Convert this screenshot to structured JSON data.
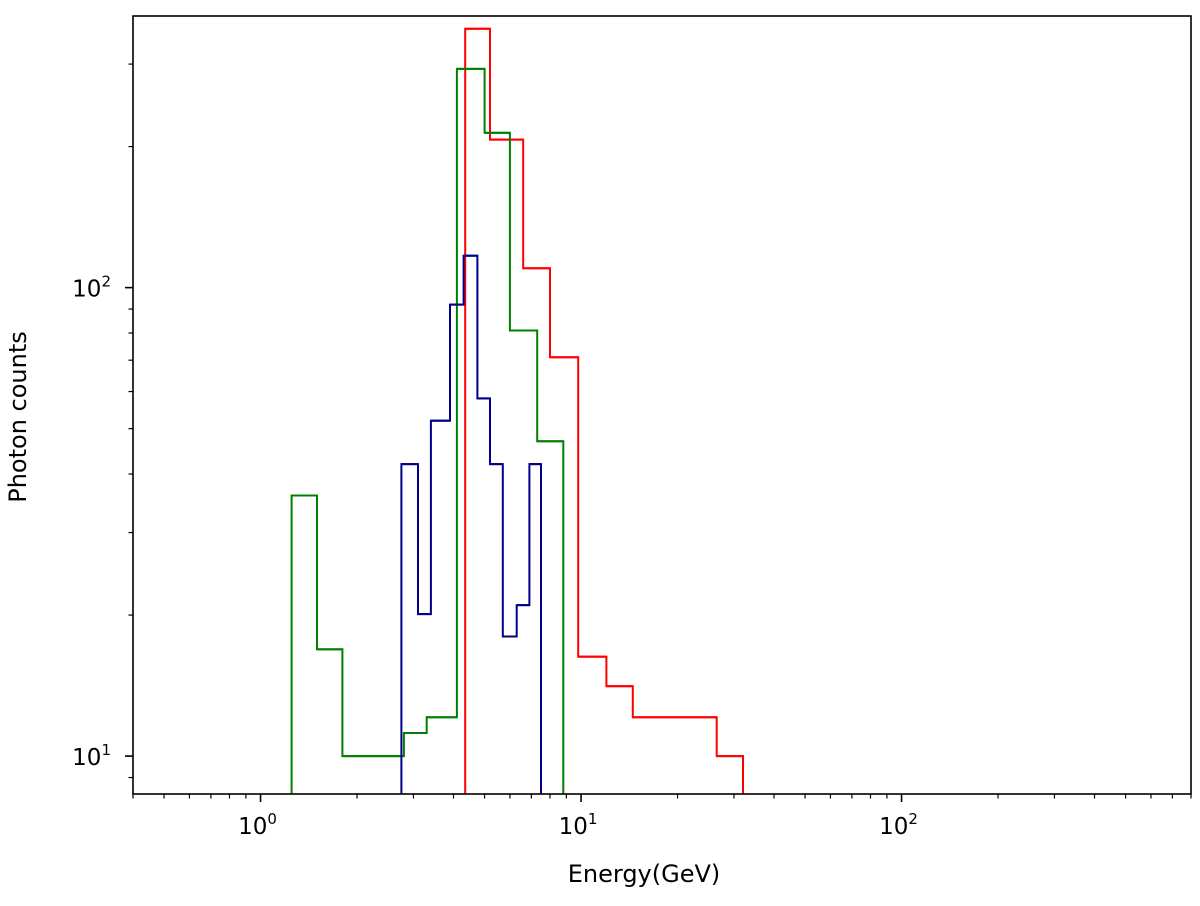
{
  "chart_data": {
    "type": "line",
    "title": "",
    "xlabel": "Energy(GeV)",
    "ylabel": "Photon counts",
    "xscale": "log",
    "yscale": "log",
    "xlim": [
      0.4,
      800
    ],
    "ylim": [
      8.3,
      380
    ],
    "grid": false,
    "legend": "none",
    "x_ticks": [
      {
        "base": "10",
        "exp": "0",
        "value": 1
      },
      {
        "base": "10",
        "exp": "1",
        "value": 10
      },
      {
        "base": "10",
        "exp": "2",
        "value": 100
      }
    ],
    "y_ticks": [
      {
        "base": "10",
        "exp": "1",
        "value": 10
      },
      {
        "base": "10",
        "exp": "2",
        "value": 100
      }
    ],
    "series": [
      {
        "color": "#ff0000",
        "bins": [
          {
            "x0": 4.35,
            "x1": 5.2,
            "y": 357
          },
          {
            "x0": 5.2,
            "x1": 6.6,
            "y": 207
          },
          {
            "x0": 6.6,
            "x1": 8.0,
            "y": 110
          },
          {
            "x0": 8.0,
            "x1": 9.8,
            "y": 71
          },
          {
            "x0": 9.8,
            "x1": 12.0,
            "y": 16.3
          },
          {
            "x0": 12.0,
            "x1": 14.5,
            "y": 14.1
          },
          {
            "x0": 14.5,
            "x1": 26.5,
            "y": 12.1
          },
          {
            "x0": 26.5,
            "x1": 32.0,
            "y": 10.0
          }
        ]
      },
      {
        "color": "#008000",
        "bins": [
          {
            "x0": 1.25,
            "x1": 1.5,
            "y": 36
          },
          {
            "x0": 1.5,
            "x1": 1.8,
            "y": 16.9
          },
          {
            "x0": 1.8,
            "x1": 2.8,
            "y": 10.0
          },
          {
            "x0": 2.8,
            "x1": 3.3,
            "y": 11.2
          },
          {
            "x0": 3.3,
            "x1": 4.1,
            "y": 12.1
          },
          {
            "x0": 4.1,
            "x1": 5.0,
            "y": 293
          },
          {
            "x0": 5.0,
            "x1": 6.0,
            "y": 214
          },
          {
            "x0": 6.0,
            "x1": 7.3,
            "y": 81
          },
          {
            "x0": 7.3,
            "x1": 8.8,
            "y": 47
          }
        ]
      },
      {
        "color": "#00008b",
        "bins": [
          {
            "x0": 2.75,
            "x1": 3.1,
            "y": 42
          },
          {
            "x0": 3.1,
            "x1": 3.4,
            "y": 20.1
          },
          {
            "x0": 3.4,
            "x1": 3.9,
            "y": 52
          },
          {
            "x0": 3.9,
            "x1": 4.3,
            "y": 92
          },
          {
            "x0": 4.3,
            "x1": 4.75,
            "y": 117
          },
          {
            "x0": 4.75,
            "x1": 5.2,
            "y": 58
          },
          {
            "x0": 5.2,
            "x1": 5.7,
            "y": 42
          },
          {
            "x0": 5.7,
            "x1": 6.3,
            "y": 18.0
          },
          {
            "x0": 6.3,
            "x1": 6.9,
            "y": 21
          },
          {
            "x0": 6.9,
            "x1": 7.5,
            "y": 42
          }
        ]
      }
    ]
  }
}
